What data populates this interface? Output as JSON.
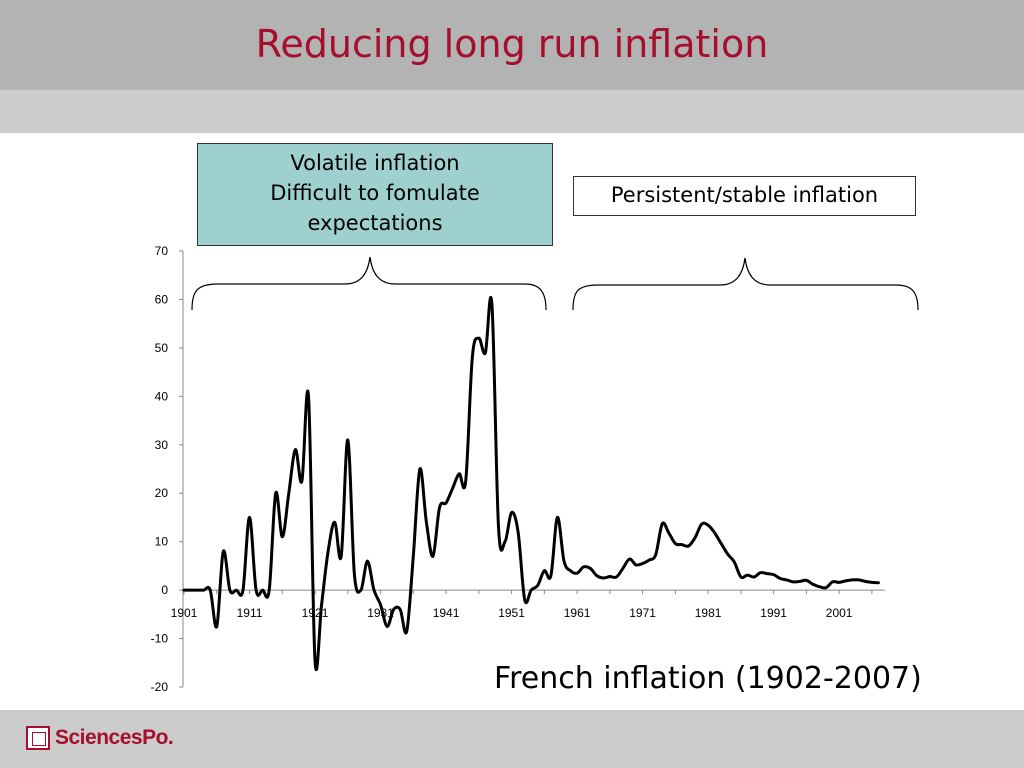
{
  "slide": {
    "title": "Reducing long run inflation",
    "caption": "French inflation (1902-2007)",
    "title_color": "#a50e2d"
  },
  "annotations": {
    "volatile_lines": [
      "Volatile inflation",
      "Difficult to fomulate",
      "expectations"
    ],
    "stable": "Persistent/stable inflation",
    "volatile_fill": "#9ed0d0"
  },
  "footer": {
    "logo_text": "SciencesPo.",
    "logo_icon": "sciencespo-crest-icon"
  },
  "chart_data": {
    "type": "line",
    "title": "",
    "xlabel": "",
    "ylabel": "",
    "xlim": [
      1901,
      2008
    ],
    "ylim": [
      -20,
      70
    ],
    "x_ticks": [
      "1901",
      "1911",
      "1921",
      "1931",
      "1941",
      "1951",
      "1961",
      "1971",
      "1981",
      "1991",
      "2001"
    ],
    "y_ticks": [
      "70",
      "60",
      "50",
      "40",
      "30",
      "20",
      "10",
      "0",
      "-10",
      "-20"
    ],
    "grid": false,
    "series": [
      {
        "color": "#000000",
        "points": [
          [
            1901,
            0
          ],
          [
            1902,
            0
          ],
          [
            1903,
            0
          ],
          [
            1904,
            0
          ],
          [
            1905,
            0
          ],
          [
            1906,
            -7.5
          ],
          [
            1907,
            8
          ],
          [
            1908,
            0
          ],
          [
            1909,
            0
          ],
          [
            1910,
            0
          ],
          [
            1911,
            15
          ],
          [
            1912,
            0
          ],
          [
            1913,
            0
          ],
          [
            1914,
            0
          ],
          [
            1915,
            20
          ],
          [
            1916,
            11
          ],
          [
            1917,
            20
          ],
          [
            1918,
            29
          ],
          [
            1919,
            22.5
          ],
          [
            1920,
            40
          ],
          [
            1921,
            -14.5
          ],
          [
            1922,
            -3
          ],
          [
            1923,
            8
          ],
          [
            1924,
            14
          ],
          [
            1925,
            7
          ],
          [
            1926,
            31
          ],
          [
            1927,
            3.5
          ],
          [
            1928,
            0
          ],
          [
            1929,
            6
          ],
          [
            1930,
            0
          ],
          [
            1931,
            -3
          ],
          [
            1932,
            -7.5
          ],
          [
            1933,
            -4
          ],
          [
            1934,
            -4
          ],
          [
            1935,
            -8.5
          ],
          [
            1936,
            7
          ],
          [
            1937,
            25
          ],
          [
            1938,
            14
          ],
          [
            1939,
            7
          ],
          [
            1940,
            17
          ],
          [
            1941,
            18
          ],
          [
            1942,
            21
          ],
          [
            1943,
            24
          ],
          [
            1944,
            22.5
          ],
          [
            1945,
            48
          ],
          [
            1946,
            52
          ],
          [
            1947,
            49
          ],
          [
            1948,
            59
          ],
          [
            1949,
            13
          ],
          [
            1950,
            10
          ],
          [
            1951,
            16
          ],
          [
            1952,
            12
          ],
          [
            1953,
            -2
          ],
          [
            1954,
            0
          ],
          [
            1955,
            1
          ],
          [
            1956,
            4
          ],
          [
            1957,
            3
          ],
          [
            1958,
            15
          ],
          [
            1959,
            6
          ],
          [
            1960,
            4
          ],
          [
            1961,
            3.5
          ],
          [
            1962,
            4.8
          ],
          [
            1963,
            4.5
          ],
          [
            1964,
            3
          ],
          [
            1965,
            2.5
          ],
          [
            1966,
            2.8
          ],
          [
            1967,
            2.7
          ],
          [
            1968,
            4.5
          ],
          [
            1969,
            6.4
          ],
          [
            1970,
            5.2
          ],
          [
            1971,
            5.5
          ],
          [
            1972,
            6.2
          ],
          [
            1973,
            7.3
          ],
          [
            1974,
            13.7
          ],
          [
            1975,
            11.8
          ],
          [
            1976,
            9.6
          ],
          [
            1977,
            9.4
          ],
          [
            1978,
            9.1
          ],
          [
            1979,
            10.8
          ],
          [
            1980,
            13.6
          ],
          [
            1981,
            13.4
          ],
          [
            1982,
            11.8
          ],
          [
            1983,
            9.6
          ],
          [
            1984,
            7.4
          ],
          [
            1985,
            5.8
          ],
          [
            1986,
            2.7
          ],
          [
            1987,
            3.1
          ],
          [
            1988,
            2.7
          ],
          [
            1989,
            3.6
          ],
          [
            1990,
            3.4
          ],
          [
            1991,
            3.2
          ],
          [
            1992,
            2.4
          ],
          [
            1993,
            2.1
          ],
          [
            1994,
            1.7
          ],
          [
            1995,
            1.8
          ],
          [
            1996,
            2.0
          ],
          [
            1997,
            1.2
          ],
          [
            1998,
            0.7
          ],
          [
            1999,
            0.5
          ],
          [
            2000,
            1.7
          ],
          [
            2001,
            1.6
          ],
          [
            2002,
            1.9
          ],
          [
            2003,
            2.1
          ],
          [
            2004,
            2.1
          ],
          [
            2005,
            1.8
          ],
          [
            2006,
            1.6
          ],
          [
            2007,
            1.5
          ]
        ]
      }
    ]
  }
}
